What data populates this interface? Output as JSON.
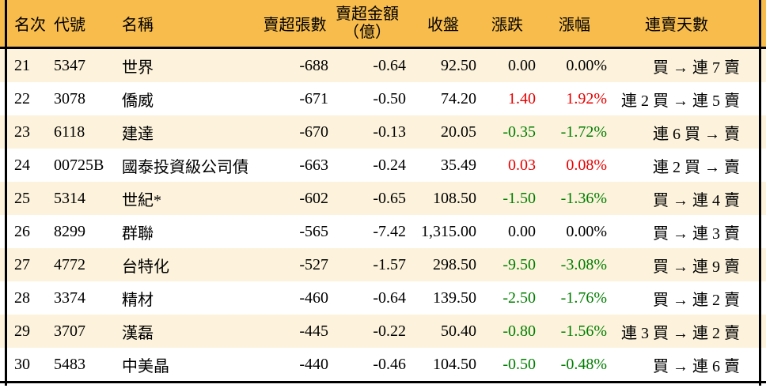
{
  "chart_data": {
    "type": "table",
    "columns": [
      {
        "key": "rank",
        "label": "名次"
      },
      {
        "key": "code",
        "label": "代號"
      },
      {
        "key": "name",
        "label": "名稱"
      },
      {
        "key": "sell_volume",
        "label": "賣超張數"
      },
      {
        "key": "sell_amount",
        "label": "賣超金額",
        "label2": "（億）"
      },
      {
        "key": "close",
        "label": "收盤"
      },
      {
        "key": "change",
        "label": "漲跌"
      },
      {
        "key": "change_pct",
        "label": "漲幅"
      },
      {
        "key": "streak",
        "label": "連賣天數"
      }
    ],
    "rows": [
      {
        "rank": "21",
        "code": "5347",
        "name": "世界",
        "sell_volume": "-688",
        "sell_amount": "-0.64",
        "close": "92.50",
        "change": "0.00",
        "change_pct": "0.00%",
        "change_color": "black",
        "streak": "買 → 連 7 賣"
      },
      {
        "rank": "22",
        "code": "3078",
        "name": "僑威",
        "sell_volume": "-671",
        "sell_amount": "-0.50",
        "close": "74.20",
        "change": "1.40",
        "change_pct": "1.92%",
        "change_color": "red",
        "streak": "連 2 買 → 連 5 賣"
      },
      {
        "rank": "23",
        "code": "6118",
        "name": "建達",
        "sell_volume": "-670",
        "sell_amount": "-0.13",
        "close": "20.05",
        "change": "-0.35",
        "change_pct": "-1.72%",
        "change_color": "green",
        "streak": "連 6 買 → 賣"
      },
      {
        "rank": "24",
        "code": "00725B",
        "name": "國泰投資級公司債",
        "sell_volume": "-663",
        "sell_amount": "-0.24",
        "close": "35.49",
        "change": "0.03",
        "change_pct": "0.08%",
        "change_color": "red",
        "streak": "連 2 買 → 賣"
      },
      {
        "rank": "25",
        "code": "5314",
        "name": "世紀*",
        "sell_volume": "-602",
        "sell_amount": "-0.65",
        "close": "108.50",
        "change": "-1.50",
        "change_pct": "-1.36%",
        "change_color": "green",
        "streak": "買 → 連 4 賣"
      },
      {
        "rank": "26",
        "code": "8299",
        "name": "群聯",
        "sell_volume": "-565",
        "sell_amount": "-7.42",
        "close": "1,315.00",
        "change": "0.00",
        "change_pct": "0.00%",
        "change_color": "black",
        "streak": "買 → 連 3 賣"
      },
      {
        "rank": "27",
        "code": "4772",
        "name": "台特化",
        "sell_volume": "-527",
        "sell_amount": "-1.57",
        "close": "298.50",
        "change": "-9.50",
        "change_pct": "-3.08%",
        "change_color": "green",
        "streak": "買 → 連 9 賣"
      },
      {
        "rank": "28",
        "code": "3374",
        "name": "精材",
        "sell_volume": "-460",
        "sell_amount": "-0.64",
        "close": "139.50",
        "change": "-2.50",
        "change_pct": "-1.76%",
        "change_color": "green",
        "streak": "買 → 連 2 賣"
      },
      {
        "rank": "29",
        "code": "3707",
        "name": "漢磊",
        "sell_volume": "-445",
        "sell_amount": "-0.22",
        "close": "50.40",
        "change": "-0.80",
        "change_pct": "-1.56%",
        "change_color": "green",
        "streak": "連 3 買 → 連 2 賣"
      },
      {
        "rank": "30",
        "code": "5483",
        "name": "中美晶",
        "sell_volume": "-440",
        "sell_amount": "-0.46",
        "close": "104.50",
        "change": "-0.50",
        "change_pct": "-0.48%",
        "change_color": "green",
        "streak": "買 → 連 6 賣"
      }
    ]
  },
  "colors": {
    "header_bg": "#F7BC4B",
    "row_stripe": "#FDF3DC",
    "row_white": "#FFFFFF",
    "border_black": "#000000",
    "up_red": "#E80000",
    "down_green": "#007E00"
  }
}
